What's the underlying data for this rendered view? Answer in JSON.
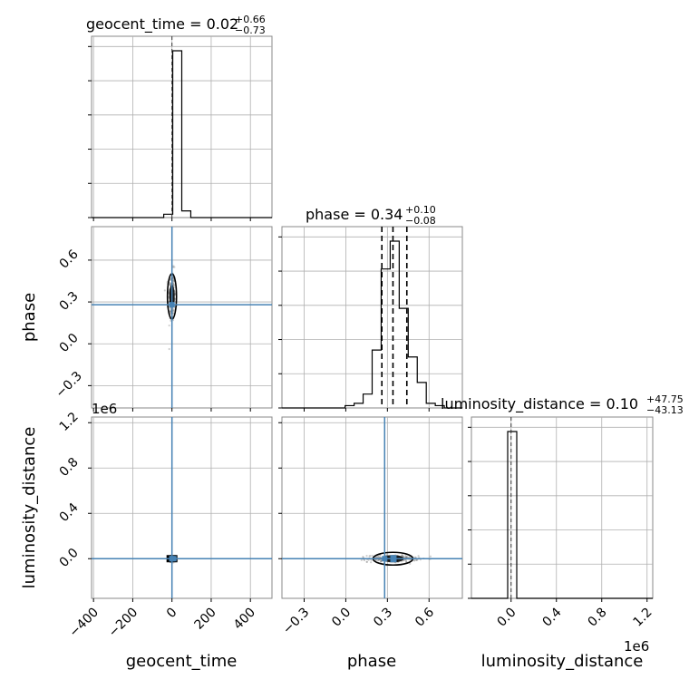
{
  "titles": {
    "geocent": {
      "name": "geocent_time",
      "median": "0.02",
      "plus": "+0.66",
      "minus": "−0.73"
    },
    "phase": {
      "name": "phase",
      "median": "0.34",
      "plus": "+0.10",
      "minus": "−0.08"
    },
    "lumdist": {
      "name": "luminosity_distance",
      "median": "0.10",
      "plus": "+47.75",
      "minus": "−43.13"
    }
  },
  "axis_labels": {
    "x": [
      "geocent_time",
      "phase",
      "luminosity_distance"
    ],
    "y": [
      "phase",
      "luminosity_distance"
    ]
  },
  "offset_labels": {
    "lumdist_y": "1e6",
    "lumdist_x": "1e6"
  },
  "chart_data": {
    "type": "corner",
    "parameters": [
      "geocent_time",
      "phase",
      "luminosity_distance"
    ],
    "truths": {
      "geocent_time": 0.0,
      "phase": 0.28,
      "luminosity_distance": 0.0
    },
    "ranges": {
      "geocent_time": [
        -410,
        510
      ],
      "phase": [
        -0.46,
        0.84
      ],
      "luminosity_distance": [
        -350000,
        1250000
      ]
    },
    "ticks": {
      "geocent_time": {
        "values": [
          -400,
          -200,
          0,
          200,
          400
        ],
        "labels": [
          "−400",
          "−200",
          "0",
          "200",
          "400"
        ]
      },
      "phase": {
        "values": [
          -0.3,
          0.0,
          0.3,
          0.6
        ],
        "labels": [
          "−0.3",
          "0.0",
          "0.3",
          "0.6"
        ]
      },
      "luminosity_distance": {
        "values": [
          0,
          400000,
          800000,
          1200000
        ],
        "labels": [
          "0.0",
          "0.4",
          "0.8",
          "1.2"
        ]
      }
    },
    "quantiles": {
      "phase": [
        0.26,
        0.34,
        0.44
      ]
    },
    "histograms": {
      "geocent_time": {
        "edges": [
          -410,
          -364,
          -318,
          -272,
          -226,
          -180,
          -134,
          -88,
          -42,
          4,
          50,
          96,
          142,
          188,
          234,
          280,
          326,
          372,
          418,
          464,
          510
        ],
        "counts": [
          0,
          0,
          0,
          0,
          0,
          0,
          0,
          0,
          2,
          100,
          4,
          0,
          0,
          0,
          0,
          0,
          0,
          0,
          0,
          0
        ]
      },
      "phase": {
        "edges": [
          -0.46,
          -0.395,
          -0.33,
          -0.265,
          -0.2,
          -0.135,
          -0.07,
          -0.005,
          0.06,
          0.125,
          0.19,
          0.255,
          0.32,
          0.385,
          0.45,
          0.515,
          0.58,
          0.645,
          0.71,
          0.775,
          0.84
        ],
        "counts": [
          0,
          0,
          0,
          0,
          0,
          0,
          0,
          1,
          2,
          6,
          25,
          60,
          72,
          43,
          22,
          11,
          2,
          1,
          0,
          0
        ]
      },
      "luminosity_distance": {
        "edges": [
          -350000,
          -270000,
          -190000,
          -110000,
          -30000,
          50000,
          130000,
          210000,
          290000,
          370000,
          450000,
          530000,
          610000,
          690000,
          770000,
          850000,
          930000,
          1010000,
          1090000,
          1170000,
          1250000
        ],
        "counts": [
          0,
          0,
          0,
          0,
          100,
          0,
          0,
          0,
          0,
          0,
          0,
          0,
          0,
          0,
          0,
          0,
          0,
          0,
          0,
          0
        ]
      }
    },
    "grid": true
  }
}
